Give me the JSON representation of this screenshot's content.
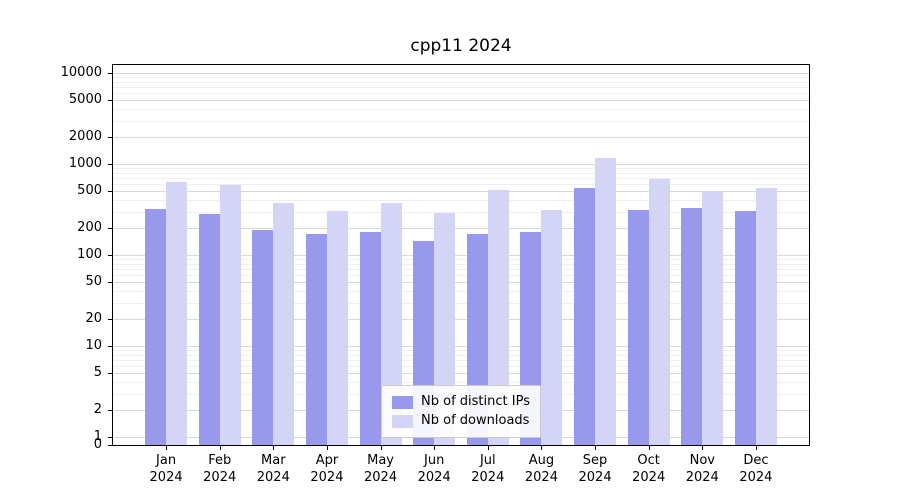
{
  "chart_data": {
    "type": "bar",
    "title": "cpp11 2024",
    "categories": [
      "Jan 2024",
      "Feb 2024",
      "Mar 2024",
      "Apr 2024",
      "May 2024",
      "Jun 2024",
      "Jul 2024",
      "Aug 2024",
      "Sep 2024",
      "Oct 2024",
      "Nov 2024",
      "Dec 2024"
    ],
    "series": [
      {
        "name": "Nb of distinct IPs",
        "color": "#9898ec",
        "values": [
          320,
          280,
          190,
          168,
          178,
          142,
          168,
          178,
          540,
          315,
          330,
          305
        ]
      },
      {
        "name": "Nb of downloads",
        "color": "#d4d4f6",
        "values": [
          630,
          590,
          370,
          305,
          370,
          290,
          520,
          315,
          1150,
          680,
          490,
          540
        ]
      }
    ],
    "yscale": "symlog",
    "yticks": [
      0,
      1,
      2,
      5,
      10,
      20,
      50,
      100,
      200,
      500,
      1000,
      2000,
      5000,
      10000
    ],
    "ylim": [
      0,
      12000
    ],
    "xlabel": "",
    "ylabel": "",
    "grid": true,
    "legend_position": "lower center"
  }
}
